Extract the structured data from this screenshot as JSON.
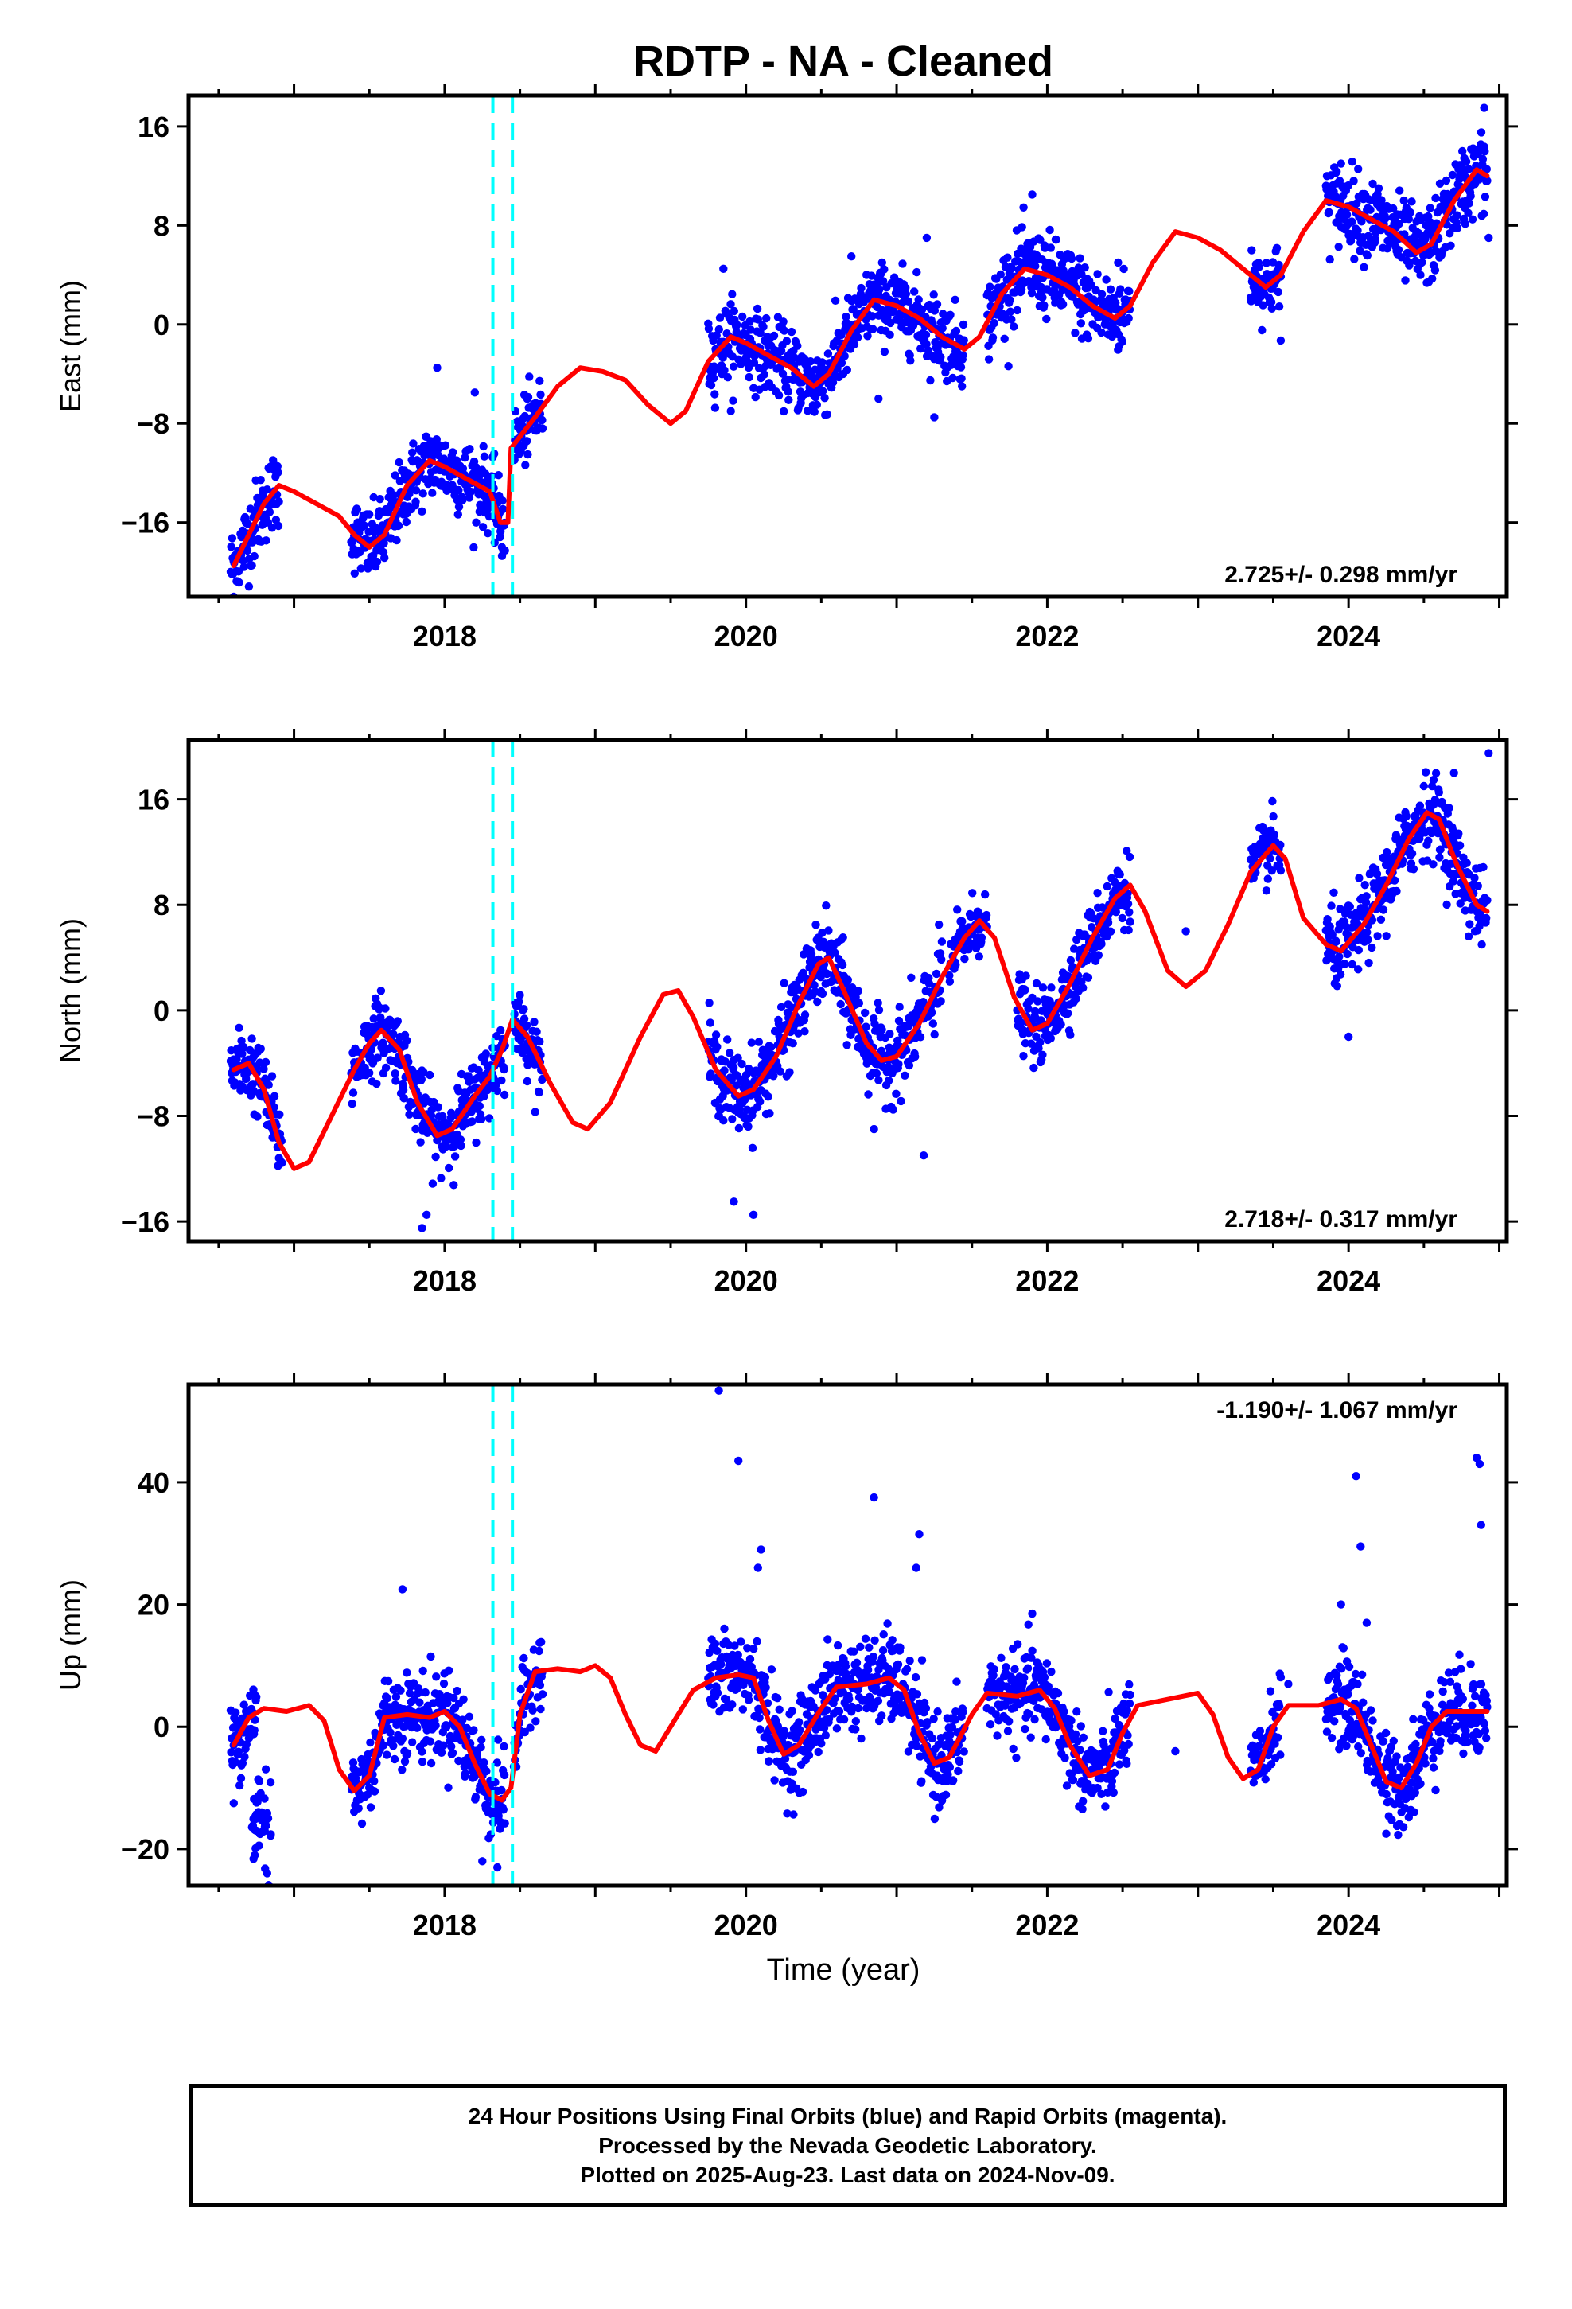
{
  "title": "RDTP  - NA - Cleaned",
  "xlabel": "Time (year)",
  "footer": {
    "line1": "24 Hour Positions Using Final Orbits (blue) and Rapid Orbits (magenta).",
    "line2": "Processed by the Nevada Geodetic Laboratory.",
    "line3": "Plotted on 2025-Aug-23. Last data on 2024-Nov-09."
  },
  "colors": {
    "points": "#0000ff",
    "fit": "#ff0000",
    "events": "#00ffff",
    "frame": "#000000"
  },
  "chart_data": [
    {
      "type": "scatter",
      "component": "east",
      "ylabel": "East (mm)",
      "rate_label": "2.725+/- 0.298 mm/yr",
      "xlim": [
        2016.3,
        2025.05
      ],
      "ylim": [
        -22,
        18.5
      ],
      "yticks": [
        -16,
        -8,
        0,
        8,
        16
      ],
      "xticks": [
        2018,
        2020,
        2022,
        2024
      ],
      "events": [
        2018.32,
        2018.45
      ],
      "fit_curve": [
        [
          2016.6,
          -19.5
        ],
        [
          2016.7,
          -17
        ],
        [
          2016.8,
          -14.5
        ],
        [
          2016.9,
          -13
        ],
        [
          2017.0,
          -13.5
        ],
        [
          2017.15,
          -14.5
        ],
        [
          2017.3,
          -15.5
        ],
        [
          2017.4,
          -17
        ],
        [
          2017.5,
          -18
        ],
        [
          2017.6,
          -17
        ],
        [
          2017.75,
          -13
        ],
        [
          2017.9,
          -11
        ],
        [
          2018.0,
          -11.5
        ],
        [
          2018.15,
          -12.5
        ],
        [
          2018.3,
          -13.5
        ],
        [
          2018.37,
          -16
        ],
        [
          2018.42,
          -16
        ],
        [
          2018.44,
          -10
        ],
        [
          2018.6,
          -7.5
        ],
        [
          2018.75,
          -5
        ],
        [
          2018.9,
          -3.5
        ],
        [
          2019.05,
          -3.8
        ],
        [
          2019.2,
          -4.5
        ],
        [
          2019.35,
          -6.5
        ],
        [
          2019.5,
          -8
        ],
        [
          2019.6,
          -7
        ],
        [
          2019.75,
          -3
        ],
        [
          2019.9,
          -1
        ],
        [
          2020.0,
          -1.5
        ],
        [
          2020.15,
          -2.5
        ],
        [
          2020.3,
          -3.5
        ],
        [
          2020.45,
          -5
        ],
        [
          2020.55,
          -4
        ],
        [
          2020.7,
          -0.5
        ],
        [
          2020.85,
          2
        ],
        [
          2021.0,
          1.5
        ],
        [
          2021.15,
          0.5
        ],
        [
          2021.3,
          -1
        ],
        [
          2021.45,
          -2
        ],
        [
          2021.55,
          -1
        ],
        [
          2021.7,
          2.5
        ],
        [
          2021.85,
          4.5
        ],
        [
          2022.0,
          4
        ],
        [
          2022.15,
          3
        ],
        [
          2022.3,
          1.5
        ],
        [
          2022.45,
          0.5
        ],
        [
          2022.55,
          1.5
        ],
        [
          2022.7,
          5
        ],
        [
          2022.85,
          7.5
        ],
        [
          2023.0,
          7
        ],
        [
          2023.15,
          6
        ],
        [
          2023.3,
          4.5
        ],
        [
          2023.45,
          3
        ],
        [
          2023.55,
          4
        ],
        [
          2023.7,
          7.5
        ],
        [
          2023.85,
          10
        ],
        [
          2024.0,
          9.5
        ],
        [
          2024.15,
          8.5
        ],
        [
          2024.3,
          7.5
        ],
        [
          2024.45,
          5.8
        ],
        [
          2024.55,
          6.5
        ],
        [
          2024.7,
          10
        ],
        [
          2024.85,
          12.5
        ],
        [
          2024.92,
          12
        ]
      ],
      "data_segments": [
        {
          "t": [
            2016.58,
            2016.9
          ],
          "amp": 1.6
        },
        {
          "t": [
            2017.38,
            2018.4
          ],
          "amp": 1.5
        },
        {
          "t": [
            2018.46,
            2018.65
          ],
          "amp": 1.4
        },
        {
          "t": [
            2019.75,
            2021.45
          ],
          "amp": 1.5
        },
        {
          "t": [
            2021.6,
            2022.55
          ],
          "amp": 1.6
        },
        {
          "t": [
            2023.35,
            2023.55
          ],
          "amp": 1.3
        },
        {
          "t": [
            2023.85,
            2024.92
          ],
          "amp": 1.6
        }
      ],
      "outliers": [
        [
          2016.6,
          -22
        ],
        [
          2017.95,
          -3.5
        ],
        [
          2018.2,
          -5.5
        ],
        [
          2018.38,
          -18
        ],
        [
          2019.85,
          4.5
        ],
        [
          2019.9,
          -7
        ],
        [
          2020.7,
          5.5
        ],
        [
          2020.88,
          -6
        ],
        [
          2021.25,
          -7.5
        ],
        [
          2021.2,
          7
        ],
        [
          2021.9,
          10.5
        ],
        [
          2022.47,
          5
        ],
        [
          2023.55,
          -1.3
        ],
        [
          2023.95,
          13
        ],
        [
          2024.2,
          11
        ],
        [
          2024.9,
          17.5
        ],
        [
          2024.93,
          7
        ]
      ]
    },
    {
      "type": "scatter",
      "component": "north",
      "ylabel": "North (mm)",
      "rate_label": "2.718+/- 0.317 mm/yr",
      "xlim": [
        2016.3,
        2025.05
      ],
      "ylim": [
        -17.5,
        20.5
      ],
      "yticks": [
        -16,
        -8,
        0,
        8,
        16
      ],
      "xticks": [
        2018,
        2020,
        2022,
        2024
      ],
      "events": [
        2018.32,
        2018.45
      ],
      "fit_curve": [
        [
          2016.6,
          -4.5
        ],
        [
          2016.7,
          -4
        ],
        [
          2016.8,
          -6
        ],
        [
          2016.9,
          -10
        ],
        [
          2017.0,
          -12
        ],
        [
          2017.1,
          -11.5
        ],
        [
          2017.25,
          -8
        ],
        [
          2017.4,
          -4.5
        ],
        [
          2017.5,
          -2.5
        ],
        [
          2017.58,
          -1.5
        ],
        [
          2017.7,
          -3
        ],
        [
          2017.82,
          -7
        ],
        [
          2017.95,
          -9.5
        ],
        [
          2018.05,
          -9
        ],
        [
          2018.2,
          -6.5
        ],
        [
          2018.3,
          -5
        ],
        [
          2018.38,
          -3
        ],
        [
          2018.45,
          -0.7
        ],
        [
          2018.55,
          -2
        ],
        [
          2018.7,
          -5.5
        ],
        [
          2018.85,
          -8.5
        ],
        [
          2018.95,
          -9
        ],
        [
          2019.1,
          -7
        ],
        [
          2019.3,
          -2
        ],
        [
          2019.45,
          1.2
        ],
        [
          2019.55,
          1.5
        ],
        [
          2019.65,
          -0.5
        ],
        [
          2019.8,
          -4.5
        ],
        [
          2019.95,
          -6.5
        ],
        [
          2020.05,
          -6
        ],
        [
          2020.2,
          -3.5
        ],
        [
          2020.35,
          0.5
        ],
        [
          2020.48,
          3.5
        ],
        [
          2020.55,
          4
        ],
        [
          2020.65,
          1.5
        ],
        [
          2020.8,
          -2.5
        ],
        [
          2020.9,
          -3.8
        ],
        [
          2021.0,
          -3.5
        ],
        [
          2021.15,
          -1
        ],
        [
          2021.3,
          2.5
        ],
        [
          2021.45,
          5.5
        ],
        [
          2021.55,
          6.8
        ],
        [
          2021.65,
          5.5
        ],
        [
          2021.78,
          1
        ],
        [
          2021.9,
          -1.5
        ],
        [
          2022.0,
          -1
        ],
        [
          2022.15,
          2
        ],
        [
          2022.3,
          5.5
        ],
        [
          2022.45,
          8.5
        ],
        [
          2022.55,
          9.5
        ],
        [
          2022.65,
          7.5
        ],
        [
          2022.8,
          3
        ],
        [
          2022.92,
          1.8
        ],
        [
          2023.05,
          3
        ],
        [
          2023.2,
          6.5
        ],
        [
          2023.35,
          10.5
        ],
        [
          2023.5,
          12.5
        ],
        [
          2023.58,
          11.5
        ],
        [
          2023.7,
          7
        ],
        [
          2023.85,
          5
        ],
        [
          2023.95,
          4.5
        ],
        [
          2024.1,
          6.5
        ],
        [
          2024.25,
          9.5
        ],
        [
          2024.4,
          13
        ],
        [
          2024.52,
          15
        ],
        [
          2024.6,
          14.5
        ],
        [
          2024.72,
          11
        ],
        [
          2024.85,
          8
        ],
        [
          2024.92,
          7.5
        ]
      ],
      "data_segments": [
        {
          "t": [
            2016.58,
            2016.92
          ],
          "amp": 1.4
        },
        {
          "t": [
            2017.38,
            2018.4
          ],
          "amp": 1.4
        },
        {
          "t": [
            2018.46,
            2018.65
          ],
          "amp": 1.2
        },
        {
          "t": [
            2019.75,
            2021.3
          ],
          "amp": 1.5
        },
        {
          "t": [
            2021.35,
            2021.6
          ],
          "amp": 1.2
        },
        {
          "t": [
            2021.8,
            2022.55
          ],
          "amp": 1.3
        },
        {
          "t": [
            2023.35,
            2023.55
          ],
          "amp": 1.2
        },
        {
          "t": [
            2023.85,
            2024.92
          ],
          "amp": 1.5
        }
      ],
      "outliers": [
        [
          2017.85,
          -16.5
        ],
        [
          2017.88,
          -15.5
        ],
        [
          2019.92,
          -14.5
        ],
        [
          2020.05,
          -15.5
        ],
        [
          2020.85,
          -9
        ],
        [
          2021.18,
          -11
        ],
        [
          2022.92,
          6
        ],
        [
          2024.0,
          -2
        ],
        [
          2024.5,
          17
        ],
        [
          2024.7,
          18
        ],
        [
          2024.93,
          19.5
        ]
      ]
    },
    {
      "type": "scatter",
      "component": "up",
      "ylabel": "Up (mm)",
      "rate_label": "-1.190+/- 1.067 mm/yr",
      "xlim": [
        2016.3,
        2025.05
      ],
      "ylim": [
        -26,
        56
      ],
      "yticks": [
        -20,
        0,
        20,
        40
      ],
      "xticks": [
        2018,
        2020,
        2022,
        2024
      ],
      "events": [
        2018.32,
        2018.45
      ],
      "fit_curve": [
        [
          2016.6,
          -3
        ],
        [
          2016.7,
          1.5
        ],
        [
          2016.8,
          3
        ],
        [
          2016.95,
          2.5
        ],
        [
          2017.1,
          3.5
        ],
        [
          2017.2,
          1
        ],
        [
          2017.3,
          -7
        ],
        [
          2017.4,
          -10.5
        ],
        [
          2017.5,
          -8
        ],
        [
          2017.6,
          1.5
        ],
        [
          2017.75,
          2
        ],
        [
          2017.9,
          1.5
        ],
        [
          2018.0,
          2.5
        ],
        [
          2018.1,
          0
        ],
        [
          2018.2,
          -6
        ],
        [
          2018.3,
          -11
        ],
        [
          2018.38,
          -12
        ],
        [
          2018.44,
          -10
        ],
        [
          2018.5,
          2
        ],
        [
          2018.6,
          9
        ],
        [
          2018.75,
          9.5
        ],
        [
          2018.9,
          9
        ],
        [
          2019.0,
          10
        ],
        [
          2019.1,
          8
        ],
        [
          2019.2,
          2
        ],
        [
          2019.3,
          -3
        ],
        [
          2019.4,
          -4
        ],
        [
          2019.5,
          0
        ],
        [
          2019.65,
          6
        ],
        [
          2019.8,
          8
        ],
        [
          2019.95,
          8.5
        ],
        [
          2020.05,
          8
        ],
        [
          2020.15,
          1
        ],
        [
          2020.25,
          -4.5
        ],
        [
          2020.35,
          -3
        ],
        [
          2020.5,
          3
        ],
        [
          2020.6,
          6.5
        ],
        [
          2020.8,
          7
        ],
        [
          2020.95,
          8
        ],
        [
          2021.05,
          6
        ],
        [
          2021.15,
          -1
        ],
        [
          2021.25,
          -6
        ],
        [
          2021.35,
          -5
        ],
        [
          2021.5,
          2
        ],
        [
          2021.6,
          5.5
        ],
        [
          2021.8,
          5
        ],
        [
          2021.95,
          6
        ],
        [
          2022.05,
          3
        ],
        [
          2022.15,
          -3
        ],
        [
          2022.28,
          -8
        ],
        [
          2022.4,
          -7
        ],
        [
          2022.5,
          -1
        ],
        [
          2022.6,
          3.5
        ],
        [
          2022.8,
          4.5
        ],
        [
          2022.9,
          5
        ],
        [
          2023.0,
          5.5
        ],
        [
          2023.1,
          2
        ],
        [
          2023.2,
          -5
        ],
        [
          2023.3,
          -8.5
        ],
        [
          2023.4,
          -7
        ],
        [
          2023.5,
          0
        ],
        [
          2023.6,
          3.5
        ],
        [
          2023.8,
          3.5
        ],
        [
          2023.95,
          4.5
        ],
        [
          2024.05,
          3
        ],
        [
          2024.15,
          -3
        ],
        [
          2024.25,
          -9
        ],
        [
          2024.35,
          -10
        ],
        [
          2024.45,
          -6
        ],
        [
          2024.55,
          0
        ],
        [
          2024.65,
          2.5
        ],
        [
          2024.8,
          2.5
        ],
        [
          2024.92,
          2.5
        ]
      ],
      "data_segments": [
        {
          "t": [
            2016.58,
            2016.75
          ],
          "amp": 3.2
        },
        {
          "t": [
            2017.38,
            2018.4
          ],
          "amp": 3.5
        },
        {
          "t": [
            2018.46,
            2018.65
          ],
          "amp": 3.0
        },
        {
          "t": [
            2019.75,
            2021.45
          ],
          "amp": 3.6
        },
        {
          "t": [
            2021.6,
            2022.55
          ],
          "amp": 3.4
        },
        {
          "t": [
            2023.35,
            2023.55
          ],
          "amp": 3.0
        },
        {
          "t": [
            2023.85,
            2024.92
          ],
          "amp": 3.6
        }
      ],
      "extra_clusters": [
        {
          "t": [
            2016.72,
            2016.85
          ],
          "center": -15,
          "amp": 4.5
        }
      ],
      "outliers": [
        [
          2016.6,
          -12.5
        ],
        [
          2017.72,
          22.5
        ],
        [
          2018.25,
          -22
        ],
        [
          2018.35,
          -23
        ],
        [
          2019.82,
          55
        ],
        [
          2019.95,
          43.5
        ],
        [
          2020.08,
          26
        ],
        [
          2020.1,
          29
        ],
        [
          2020.85,
          37.5
        ],
        [
          2021.15,
          31.5
        ],
        [
          2021.13,
          26
        ],
        [
          2021.9,
          18.5
        ],
        [
          2023.6,
          7
        ],
        [
          2023.95,
          20
        ],
        [
          2024.05,
          41
        ],
        [
          2024.08,
          29.5
        ],
        [
          2024.12,
          17
        ],
        [
          2024.85,
          44
        ],
        [
          2024.87,
          43
        ],
        [
          2024.88,
          33
        ],
        [
          2022.85,
          -4
        ],
        [
          2024.25,
          -17.5
        ]
      ]
    }
  ]
}
